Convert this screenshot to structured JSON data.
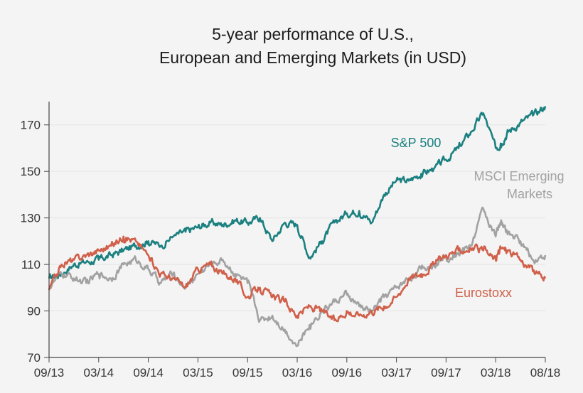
{
  "chart_data": {
    "type": "line",
    "title": [
      "5-year performance of U.S.,",
      "European and Emerging Markets (in USD)"
    ],
    "xlabel": "",
    "ylabel": "",
    "ylim": [
      70,
      180
    ],
    "yticks": [
      70,
      90,
      110,
      130,
      150,
      170
    ],
    "xticks": [
      "09/13",
      "03/14",
      "09/14",
      "03/15",
      "09/15",
      "03/16",
      "09/16",
      "03/17",
      "09/17",
      "03/18",
      "08/18"
    ],
    "grid": true,
    "series": [
      {
        "name": "S&P 500",
        "label": [
          "S&P 500"
        ],
        "color": "#1c8080",
        "x": [
          0,
          0.25,
          0.5,
          0.75,
          1,
          1.25,
          1.5,
          1.75,
          2,
          2.25,
          2.5,
          2.75,
          3,
          3.25,
          3.5,
          3.75,
          4,
          4.25,
          4.5,
          4.75,
          5,
          5.25,
          5.5,
          5.75,
          6,
          6.25,
          6.5,
          6.75,
          7,
          7.25,
          7.5,
          7.75,
          8,
          8.25,
          8.5,
          8.75,
          9,
          9.1,
          9.25,
          9.5,
          9.75,
          10
        ],
        "values": [
          104,
          106,
          110,
          111,
          112,
          114,
          116,
          118,
          120,
          118,
          122,
          124,
          126,
          128,
          127,
          129,
          128,
          130,
          120,
          128,
          127,
          113,
          120,
          128,
          132,
          133,
          128,
          140,
          146,
          146,
          149,
          151,
          155,
          160,
          167,
          175,
          160,
          162,
          167,
          171,
          174,
          178
        ]
      },
      {
        "name": "MSCI Emerging Markets",
        "label": [
          "MSCI Emerging",
          "Markets"
        ],
        "color": "#a2a2a2",
        "x": [
          0,
          0.25,
          0.5,
          0.75,
          1,
          1.25,
          1.5,
          1.75,
          2,
          2.25,
          2.5,
          2.75,
          3,
          3.25,
          3.5,
          3.75,
          4,
          4.25,
          4.5,
          4.75,
          5,
          5.25,
          5.5,
          5.75,
          6,
          6.25,
          6.5,
          6.75,
          7,
          7.25,
          7.5,
          7.75,
          8,
          8.25,
          8.5,
          8.75,
          9,
          9.1,
          9.25,
          9.5,
          9.75,
          10
        ],
        "values": [
          100,
          106,
          104,
          102,
          106,
          104,
          110,
          112,
          108,
          102,
          106,
          100,
          106,
          110,
          112,
          106,
          102,
          86,
          88,
          82,
          75,
          84,
          90,
          94,
          97,
          92,
          90,
          96,
          100,
          104,
          108,
          110,
          113,
          115,
          118,
          134,
          122,
          128,
          124,
          120,
          112,
          114
        ]
      },
      {
        "name": "Eurostoxx",
        "label": [
          "Eurostoxx"
        ],
        "color": "#d0604a",
        "x": [
          0,
          0.25,
          0.5,
          0.75,
          1,
          1.25,
          1.5,
          1.75,
          2,
          2.25,
          2.5,
          2.75,
          3,
          3.25,
          3.5,
          3.75,
          4,
          4.25,
          4.5,
          4.75,
          5,
          5.25,
          5.5,
          5.75,
          6,
          6.25,
          6.5,
          6.75,
          7,
          7.25,
          7.5,
          7.75,
          8,
          8.25,
          8.5,
          8.75,
          9,
          9.1,
          9.25,
          9.5,
          9.75,
          10
        ],
        "values": [
          99,
          110,
          112,
          114,
          116,
          118,
          122,
          120,
          114,
          106,
          104,
          100,
          108,
          110,
          106,
          104,
          96,
          100,
          96,
          94,
          88,
          92,
          90,
          86,
          90,
          88,
          90,
          92,
          96,
          104,
          106,
          110,
          114,
          116,
          117,
          116,
          112,
          117,
          116,
          112,
          107,
          104
        ]
      }
    ]
  }
}
